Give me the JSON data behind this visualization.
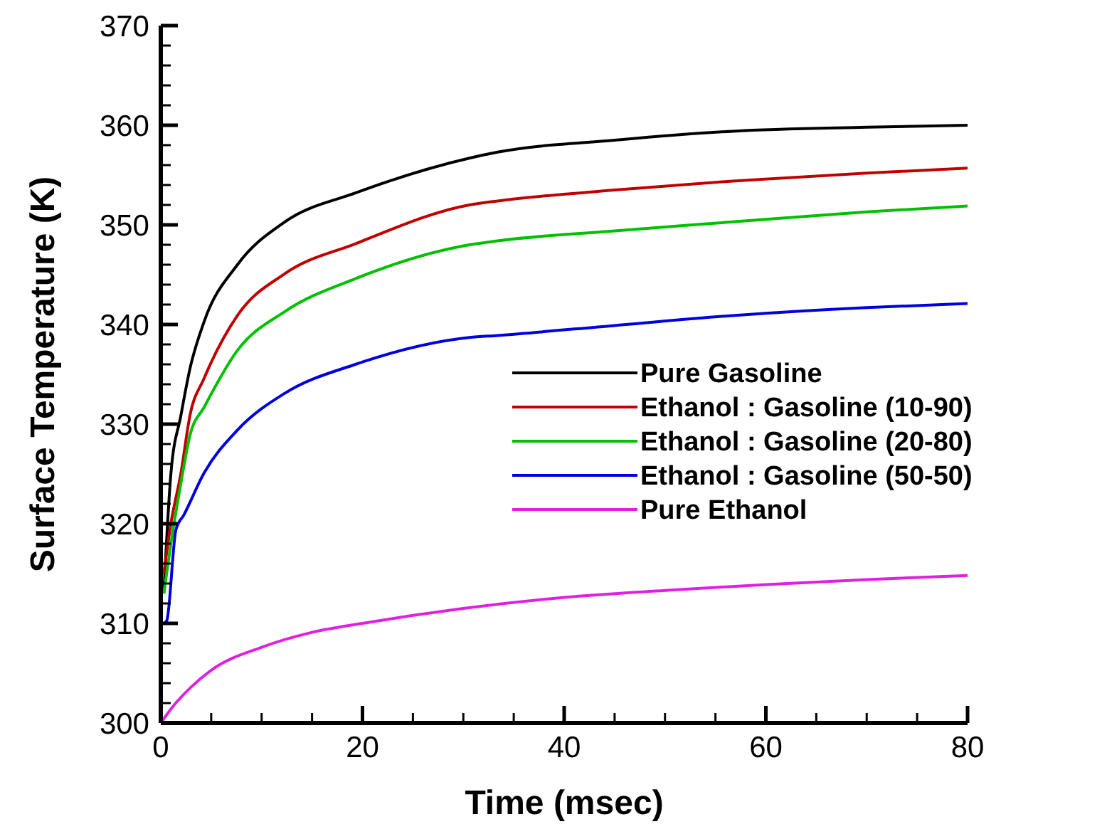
{
  "chart_data": {
    "type": "line",
    "xlabel": "Time (msec)",
    "ylabel": "Surface Temperature (K)",
    "xlim": [
      0,
      80
    ],
    "ylim": [
      300,
      370
    ],
    "xticks": [
      0,
      {
        "value": 5,
        "label": null
      },
      {
        "value": 10,
        "label": null
      },
      {
        "value": 15,
        "label": null
      },
      20,
      {
        "value": 25,
        "label": null
      },
      {
        "value": 30,
        "label": null
      },
      {
        "value": 35,
        "label": null
      },
      40,
      {
        "value": 45,
        "label": null
      },
      {
        "value": 50,
        "label": null
      },
      {
        "value": 55,
        "label": null
      },
      60,
      {
        "value": 65,
        "label": null
      },
      {
        "value": 70,
        "label": null
      },
      {
        "value": 75,
        "label": null
      },
      80
    ],
    "yticks": [
      300,
      {
        "value": 302,
        "label": null
      },
      {
        "value": 304,
        "label": null
      },
      {
        "value": 306,
        "label": null
      },
      {
        "value": 308,
        "label": null
      },
      310,
      {
        "value": 312,
        "label": null
      },
      {
        "value": 314,
        "label": null
      },
      {
        "value": 316,
        "label": null
      },
      {
        "value": 318,
        "label": null
      },
      320,
      {
        "value": 322,
        "label": null
      },
      {
        "value": 324,
        "label": null
      },
      {
        "value": 326,
        "label": null
      },
      {
        "value": 328,
        "label": null
      },
      330,
      {
        "value": 332,
        "label": null
      },
      {
        "value": 334,
        "label": null
      },
      {
        "value": 336,
        "label": null
      },
      {
        "value": 338,
        "label": null
      },
      340,
      {
        "value": 342,
        "label": null
      },
      {
        "value": 344,
        "label": null
      },
      {
        "value": 346,
        "label": null
      },
      {
        "value": 348,
        "label": null
      },
      350,
      {
        "value": 352,
        "label": null
      },
      {
        "value": 354,
        "label": null
      },
      {
        "value": 356,
        "label": null
      },
      {
        "value": 358,
        "label": null
      },
      360,
      {
        "value": 362,
        "label": null
      },
      {
        "value": 364,
        "label": null
      },
      {
        "value": 366,
        "label": null
      },
      {
        "value": 368,
        "label": null
      },
      370
    ],
    "grid": false,
    "legend": "right",
    "marker": "none",
    "line_style": "solid",
    "series": [
      {
        "name": "Pure Gasoline",
        "color": "#000000",
        "x": [
          0.3,
          1,
          2,
          2.9,
          4.3,
          7.6,
          12.3,
          19.3,
          30.6,
          33.4,
          45,
          56.7,
          70,
          80
        ],
        "values": [
          313,
          325,
          330.9,
          335.6,
          340.3,
          346,
          350.3,
          353.2,
          356.7,
          357.3,
          358.5,
          359.4,
          359.8,
          360
        ]
      },
      {
        "name": "Ethanol : Gasoline (10-90)",
        "color": "#c00000",
        "x": [
          0.3,
          1,
          2,
          2.9,
          4.3,
          7.6,
          12.3,
          19.3,
          30.6,
          33.4,
          45,
          56.7,
          70,
          80
        ],
        "values": [
          315,
          320,
          325.1,
          330.9,
          334.6,
          340.9,
          345.1,
          348.1,
          352,
          352.4,
          353.5,
          354.4,
          355.2,
          355.7
        ]
      },
      {
        "name": "Ethanol : Gasoline (20-80)",
        "color": "#00c000",
        "x": [
          0.3,
          1,
          2,
          2.9,
          4.3,
          7.6,
          12.3,
          19.3,
          30.6,
          33.4,
          45,
          56.7,
          70,
          80
        ],
        "values": [
          313,
          318,
          324.1,
          328.9,
          331.7,
          337.4,
          341.3,
          344.6,
          348,
          348.4,
          349.4,
          350.3,
          351.3,
          351.9
        ]
      },
      {
        "name": "Ethanol : Gasoline (50-50)",
        "color": "#0000e0",
        "x": [
          0.3,
          0.6,
          1.5,
          2.3,
          4.3,
          7.6,
          12.3,
          19.3,
          30.6,
          33.4,
          45,
          56.7,
          70,
          80
        ],
        "values": [
          310,
          310.3,
          319.4,
          320.9,
          325.1,
          329.4,
          333.1,
          336,
          338.7,
          338.9,
          339.9,
          340.9,
          341.7,
          342.1
        ]
      },
      {
        "name": "Pure Ethanol",
        "color": "#e020e0",
        "x": [
          0,
          1,
          3,
          5,
          10,
          15,
          20,
          30,
          40,
          50,
          60,
          70,
          80
        ],
        "values": [
          300,
          301.4,
          303.6,
          305.3,
          307.6,
          309.1,
          310,
          311.5,
          312.6,
          313.3,
          313.9,
          314.4,
          314.8
        ]
      }
    ]
  }
}
